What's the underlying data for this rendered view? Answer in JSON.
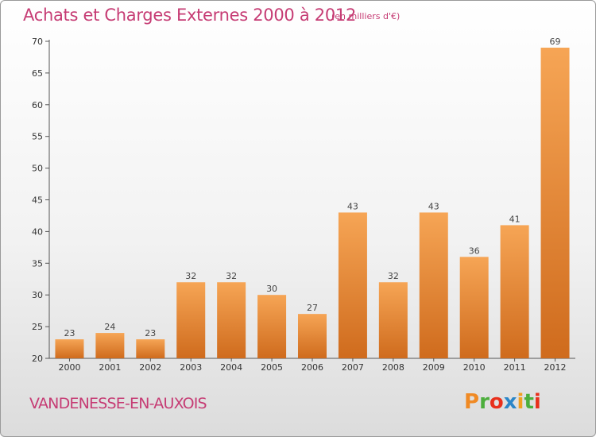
{
  "title": "Achats et Charges Externes 2000 à 2012",
  "subtitle": "(en milliers d'€)",
  "commune": "VANDENESSE-EN-AUXOIS",
  "logo": {
    "letters": [
      "P",
      "r",
      "o",
      "x",
      "i",
      "t",
      "i"
    ],
    "colors": [
      "#f08a24",
      "#4cae3c",
      "#e8301c",
      "#2b86c8",
      "#f0a020",
      "#4cae3c",
      "#e8301c"
    ]
  },
  "colors": {
    "bar_top": "#f6a555",
    "bar_bottom": "#cf6b1d",
    "text_accent": "#c63c74"
  },
  "chart_data": {
    "type": "bar",
    "title": "Achats et Charges Externes 2000 à 2012",
    "subtitle": "(en milliers d'€)",
    "xlabel": "",
    "ylabel": "",
    "categories": [
      "2000",
      "2001",
      "2002",
      "2003",
      "2004",
      "2005",
      "2006",
      "2007",
      "2008",
      "2009",
      "2010",
      "2011",
      "2012"
    ],
    "values": [
      23,
      24,
      23,
      32,
      32,
      30,
      27,
      43,
      32,
      43,
      36,
      41,
      69
    ],
    "ylim": [
      20,
      70
    ],
    "yticks": [
      20,
      25,
      30,
      35,
      40,
      45,
      50,
      55,
      60,
      65,
      70
    ],
    "grid": false,
    "legend": "none"
  }
}
